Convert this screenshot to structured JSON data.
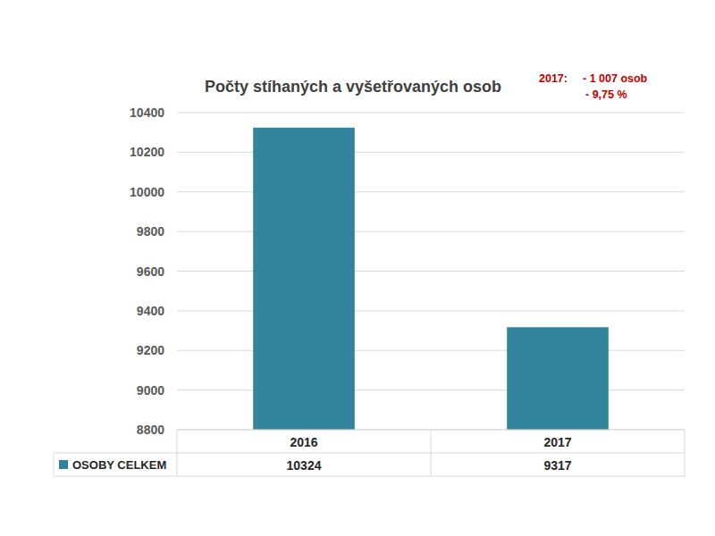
{
  "chart_data": {
    "type": "bar",
    "title": "Počty stíhaných a vyšetřovaných osob",
    "annotations": [
      "2017:",
      "- 1 007 osob",
      "- 9,75 %"
    ],
    "categories": [
      "2016",
      "2017"
    ],
    "series": [
      {
        "name": "OSOBY CELKEM",
        "color": "#31849b",
        "values": [
          10324,
          9317
        ]
      }
    ],
    "ylim": [
      8800,
      10400
    ],
    "yticks": [
      8800,
      9000,
      9200,
      9400,
      9600,
      9800,
      10000,
      10200,
      10400
    ],
    "grid": true
  }
}
